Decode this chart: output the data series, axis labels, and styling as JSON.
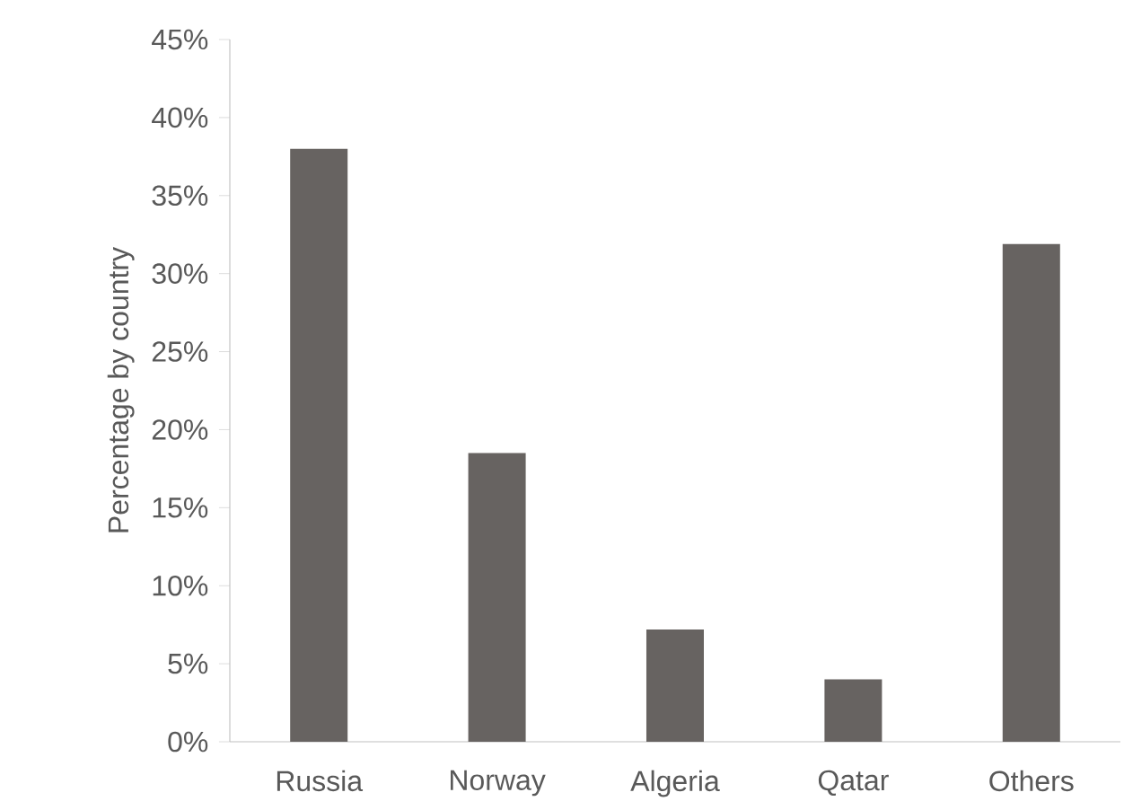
{
  "chart_data": {
    "type": "bar",
    "ylabel": "Percentage by country",
    "categories": [
      "Russia",
      "Norway",
      "Algeria",
      "Qatar",
      "Others"
    ],
    "values": [
      38.0,
      18.5,
      7.2,
      4.0,
      31.9
    ],
    "color": "#676361",
    "ylim": [
      0,
      45
    ],
    "yticks": [
      {
        "value": 0,
        "label": "0%"
      },
      {
        "value": 5,
        "label": "5%"
      },
      {
        "value": 10,
        "label": "10%"
      },
      {
        "value": 15,
        "label": "15%"
      },
      {
        "value": 20,
        "label": "20%"
      },
      {
        "value": 25,
        "label": "25%"
      },
      {
        "value": 30,
        "label": "30%"
      },
      {
        "value": 35,
        "label": "35%"
      },
      {
        "value": 40,
        "label": "40%"
      },
      {
        "value": 45,
        "label": "45%"
      }
    ],
    "grid": false
  }
}
